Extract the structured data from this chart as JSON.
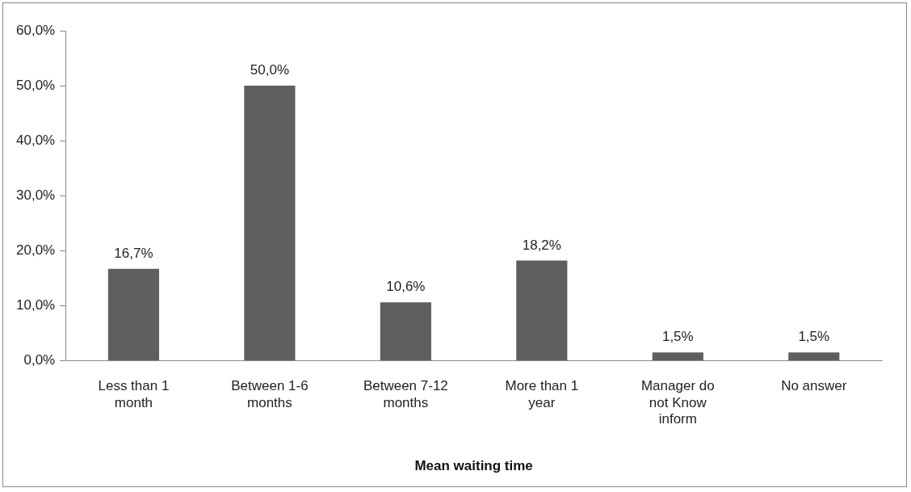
{
  "chart_data": {
    "type": "bar",
    "xlabel": "Mean waiting time",
    "categories": [
      "Less than 1 month",
      "Between 1-6 months",
      "Between 7-12 months",
      "More than 1 year",
      "Manager do not Know inform",
      "No answer"
    ],
    "values": [
      16.7,
      50.0,
      10.6,
      18.2,
      1.5,
      1.5
    ],
    "value_labels": [
      "16,7%",
      "50,0%",
      "10,6%",
      "18,2%",
      "1,5%",
      "1,5%"
    ],
    "color": "#5f5f5f",
    "ylim": [
      0,
      60
    ],
    "yticks": [
      {
        "value": 0,
        "label": "0,0%"
      },
      {
        "value": 10,
        "label": "10,0%"
      },
      {
        "value": 20,
        "label": "20,0%"
      },
      {
        "value": 30,
        "label": "30,0%"
      },
      {
        "value": 40,
        "label": "40,0%"
      },
      {
        "value": 50,
        "label": "50,0%"
      },
      {
        "value": 60,
        "label": "60,0%"
      }
    ],
    "grid": false,
    "legend": false
  }
}
